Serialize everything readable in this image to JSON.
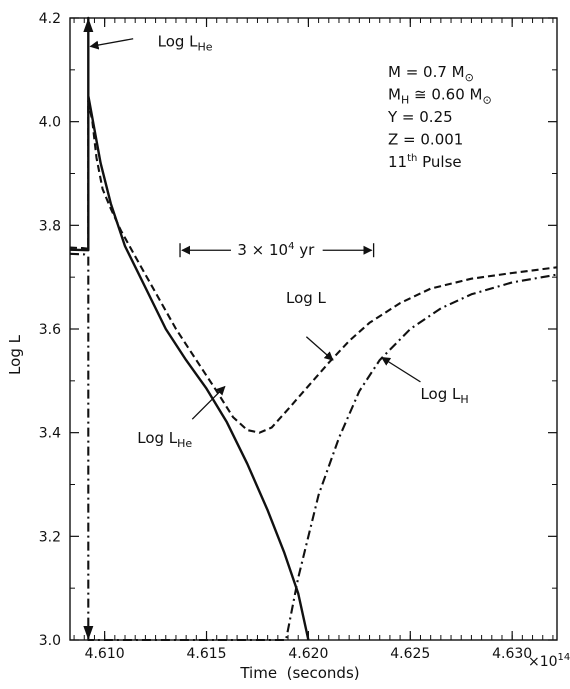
{
  "chart_data": {
    "type": "line",
    "xlabel": "Time  (seconds)",
    "ylabel": "Log L",
    "x_multiplier": {
      "base": "×10",
      "exponent": "14"
    },
    "xlim": [
      4.6083,
      4.6322
    ],
    "ylim": [
      3.0,
      4.2
    ],
    "x_ticks": [
      4.61,
      4.615,
      4.62,
      4.625,
      4.63
    ],
    "x_tick_labels": [
      "4.610",
      "4.615",
      "4.620",
      "4.625",
      "4.630"
    ],
    "y_ticks": [
      3.0,
      3.2,
      3.4,
      3.6,
      3.8,
      4.0,
      4.2
    ],
    "y_tick_labels": [
      "3.0",
      "3.2",
      "3.4",
      "3.6",
      "3.8",
      "4.0",
      "4.2"
    ],
    "grid": false,
    "parameters": [
      {
        "base": "M = 0.7 M",
        "sub": "⊙",
        "after": ""
      },
      {
        "base": "M",
        "sub": "H",
        "after": " ≅ 0.60 M",
        "sub2": "⊙"
      },
      {
        "base": "Y = 0.25"
      },
      {
        "base": "Z = 0.001"
      },
      {
        "base": "11",
        "sup": "th",
        "after": " Pulse"
      }
    ],
    "timescale": {
      "base": "3 × 10",
      "sup": "4",
      "after": " yr",
      "x_from": 4.6137,
      "x_to": 4.6232,
      "y": 3.752
    },
    "series": [
      {
        "name": "Log L",
        "style": "dashed",
        "points": [
          [
            4.6083,
            3.757
          ],
          [
            4.6089,
            3.756
          ],
          [
            4.6092,
            3.755
          ],
          [
            4.6092,
            4.04
          ],
          [
            4.6094,
            4.0
          ],
          [
            4.6096,
            3.93
          ],
          [
            4.6099,
            3.87
          ],
          [
            4.6103,
            3.832
          ],
          [
            4.6108,
            3.79
          ],
          [
            4.6115,
            3.74
          ],
          [
            4.6125,
            3.67
          ],
          [
            4.6135,
            3.6
          ],
          [
            4.6145,
            3.54
          ],
          [
            4.6155,
            3.48
          ],
          [
            4.6163,
            3.43
          ],
          [
            4.617,
            3.405
          ],
          [
            4.6176,
            3.4
          ],
          [
            4.6182,
            3.41
          ],
          [
            4.619,
            3.445
          ],
          [
            4.62,
            3.49
          ],
          [
            4.621,
            3.535
          ],
          [
            4.622,
            3.577
          ],
          [
            4.623,
            3.612
          ],
          [
            4.6245,
            3.65
          ],
          [
            4.626,
            3.678
          ],
          [
            4.628,
            3.697
          ],
          [
            4.63,
            3.708
          ],
          [
            4.6322,
            3.719
          ]
        ]
      },
      {
        "name": "Log L_He",
        "style": "solid",
        "points": [
          [
            4.6083,
            3.753
          ],
          [
            4.6092,
            3.752
          ],
          [
            4.6092,
            4.2
          ],
          [
            4.6092,
            4.05
          ],
          [
            4.6098,
            3.92
          ],
          [
            4.6103,
            3.842
          ],
          [
            4.611,
            3.76
          ],
          [
            4.612,
            3.68
          ],
          [
            4.613,
            3.6
          ],
          [
            4.614,
            3.54
          ],
          [
            4.615,
            3.485
          ],
          [
            4.616,
            3.42
          ],
          [
            4.617,
            3.34
          ],
          [
            4.618,
            3.25
          ],
          [
            4.6188,
            3.17
          ],
          [
            4.6195,
            3.09
          ],
          [
            4.62,
            3.0
          ]
        ]
      },
      {
        "name": "Log L_H",
        "style": "dashdot",
        "points": [
          [
            4.6083,
            3.745
          ],
          [
            4.609,
            3.744
          ],
          [
            4.6092,
            3.74
          ],
          [
            4.6092,
            3.0
          ],
          [
            4.6189,
            3.0
          ],
          [
            4.6195,
            3.12
          ],
          [
            4.6205,
            3.28
          ],
          [
            4.6215,
            3.39
          ],
          [
            4.6225,
            3.48
          ],
          [
            4.6235,
            3.54
          ],
          [
            4.625,
            3.6
          ],
          [
            4.6265,
            3.64
          ],
          [
            4.628,
            3.667
          ],
          [
            4.63,
            3.69
          ],
          [
            4.6322,
            3.705
          ]
        ]
      }
    ],
    "annotations": [
      {
        "id": "lhe-top",
        "base": "Log L",
        "sub": "He",
        "text_x": 4.6126,
        "text_y": 4.145,
        "arrow_from": [
          4.6114,
          4.16
        ],
        "arrow_to": [
          4.6093,
          4.145
        ]
      },
      {
        "id": "logl",
        "base": "Log L",
        "sub": "",
        "text_x": 4.6189,
        "text_y": 3.65,
        "arrow_from": [
          4.6199,
          3.585
        ],
        "arrow_to": [
          4.6212,
          3.54
        ]
      },
      {
        "id": "lh",
        "base": "Log L",
        "sub": "H",
        "text_x": 4.6255,
        "text_y": 3.465,
        "arrow_from": [
          4.6255,
          3.498
        ],
        "arrow_to": [
          4.6236,
          3.545
        ]
      },
      {
        "id": "lhe-bottom",
        "base": "Log L",
        "sub": "He",
        "text_x": 4.6116,
        "text_y": 3.38,
        "arrow_from": [
          4.6143,
          3.426
        ],
        "arrow_to": [
          4.6159,
          3.489
        ]
      }
    ]
  }
}
